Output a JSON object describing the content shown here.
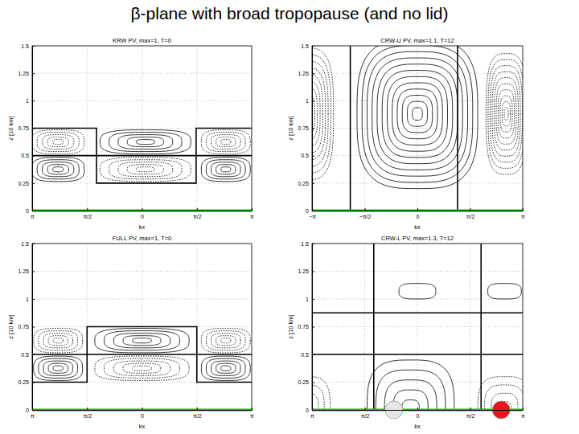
{
  "title": "β-plane with broad tropopause (and no lid)",
  "chart_data": [
    {
      "type": "contour",
      "title": "KRW PV, max=1, T=0",
      "x_label": "kx",
      "y_label": "z [10 km]",
      "xlim": [
        -3.1416,
        3.1416
      ],
      "ylim": [
        0,
        1.5
      ],
      "xticks": [
        {
          "value": -3.1416,
          "label": "π"
        },
        {
          "value": -1.5708,
          "label": "π/2"
        },
        0,
        {
          "value": 1.5708,
          "label": "π/2"
        },
        {
          "value": 3.1416,
          "label": "π"
        }
      ],
      "yticks": [
        0,
        0.25,
        0.5,
        0.75,
        1,
        1.25,
        1.5
      ],
      "grid": true,
      "surface": {
        "z": 0,
        "color": "#00c800"
      },
      "boundary": [
        {
          "x": [
            -3.1416,
            -1.3,
            -1.3,
            1.55,
            1.55,
            3.1416
          ],
          "z": [
            0.75,
            0.75,
            0.25,
            0.25,
            0.75,
            0.75
          ]
        },
        {
          "x": [
            -3.1416,
            3.1416
          ],
          "z": [
            0.5,
            0.5
          ]
        }
      ],
      "cells": [
        {
          "x": -2.4,
          "z": 0.625,
          "half_width": 0.75,
          "half_height": 0.11,
          "levels": 5,
          "line_style": "dashed"
        },
        {
          "x": 0.1,
          "z": 0.625,
          "half_width": 1.3,
          "half_height": 0.11,
          "levels": 5,
          "line_style": "solid"
        },
        {
          "x": 2.4,
          "z": 0.625,
          "half_width": 0.7,
          "half_height": 0.11,
          "levels": 5,
          "line_style": "dashed"
        },
        {
          "x": -2.4,
          "z": 0.375,
          "half_width": 0.75,
          "half_height": 0.11,
          "levels": 5,
          "line_style": "solid"
        },
        {
          "x": 0.1,
          "z": 0.375,
          "half_width": 1.3,
          "half_height": 0.11,
          "levels": 5,
          "line_style": "dashed"
        },
        {
          "x": 2.4,
          "z": 0.375,
          "half_width": 0.7,
          "half_height": 0.11,
          "levels": 5,
          "line_style": "solid"
        }
      ],
      "markers": []
    },
    {
      "type": "contour",
      "title": "CRW-U PV, max=1.1, T=12",
      "x_label": "kx",
      "y_label": "z [10 km]",
      "xlim": [
        -3.1416,
        3.1416
      ],
      "ylim": [
        0,
        1.5
      ],
      "xticks": [
        {
          "value": -3.1416,
          "label": "−π"
        },
        {
          "value": -1.5708,
          "label": "−π/2"
        },
        0,
        {
          "value": 1.5708,
          "label": "π/2"
        },
        {
          "value": 3.1416,
          "label": "π"
        }
      ],
      "yticks": [
        0,
        0.25,
        0.5,
        0.75,
        1,
        1.25,
        1.5
      ],
      "grid": true,
      "surface": {
        "z": 0,
        "color": "#00c800"
      },
      "boundary": [
        {
          "x": [
            -2.0,
            -2.0
          ],
          "z": [
            0,
            1.5
          ]
        },
        {
          "x": [
            1.2,
            1.2
          ],
          "z": [
            0,
            1.5
          ]
        }
      ],
      "cells": [
        {
          "x": 0,
          "z": 0.88,
          "half_width": 1.8,
          "half_height": 0.68,
          "levels": 12,
          "line_style": "solid"
        },
        {
          "x": -3.3,
          "z": 0.88,
          "half_width": 0.8,
          "half_height": 0.6,
          "levels": 10,
          "line_style": "dashed"
        },
        {
          "x": 2.65,
          "z": 0.88,
          "half_width": 0.6,
          "half_height": 0.55,
          "levels": 10,
          "line_style": "dashed"
        }
      ],
      "markers": []
    },
    {
      "type": "contour",
      "title": "FULL PV, max=1, T=0",
      "x_label": "kx",
      "y_label": "z [10 km]",
      "xlim": [
        -3.1416,
        3.1416
      ],
      "ylim": [
        0,
        1.5
      ],
      "xticks": [
        {
          "value": -3.1416,
          "label": "π"
        },
        {
          "value": -1.5708,
          "label": "π/2"
        },
        0,
        {
          "value": 1.5708,
          "label": "π/2"
        },
        {
          "value": 3.1416,
          "label": "π"
        }
      ],
      "yticks": [
        0,
        0.25,
        0.5,
        0.75,
        1,
        1.25,
        1.5
      ],
      "grid": true,
      "surface": {
        "z": 0,
        "color": "#00c800"
      },
      "boundary": [
        {
          "x": [
            -3.1416,
            -1.5708,
            -1.5708,
            1.5708,
            1.5708,
            3.1416
          ],
          "z": [
            0.25,
            0.25,
            0.75,
            0.75,
            0.25,
            0.25
          ]
        },
        {
          "x": [
            -3.1416,
            3.1416
          ],
          "z": [
            0.5,
            0.5
          ]
        }
      ],
      "cells": [
        {
          "x": -2.4,
          "z": 0.625,
          "half_width": 0.7,
          "half_height": 0.11,
          "levels": 5,
          "line_style": "dashed"
        },
        {
          "x": 0,
          "z": 0.625,
          "half_width": 1.35,
          "half_height": 0.11,
          "levels": 5,
          "line_style": "solid"
        },
        {
          "x": 2.4,
          "z": 0.625,
          "half_width": 0.7,
          "half_height": 0.11,
          "levels": 5,
          "line_style": "dashed"
        },
        {
          "x": -2.4,
          "z": 0.375,
          "half_width": 0.7,
          "half_height": 0.11,
          "levels": 5,
          "line_style": "solid"
        },
        {
          "x": 0,
          "z": 0.375,
          "half_width": 1.35,
          "half_height": 0.11,
          "levels": 5,
          "line_style": "dashed"
        },
        {
          "x": 2.4,
          "z": 0.375,
          "half_width": 0.7,
          "half_height": 0.11,
          "levels": 5,
          "line_style": "solid"
        }
      ],
      "markers": []
    },
    {
      "type": "contour",
      "title": "CRW-L PV, max=1.3, T=12",
      "x_label": "kx",
      "y_label": "z [10 km]",
      "xlim": [
        -3.1416,
        3.1416
      ],
      "ylim": [
        0,
        1.5
      ],
      "xticks": [
        {
          "value": -3.1416,
          "label": "π"
        },
        {
          "value": -1.5708,
          "label": "π/2"
        },
        0,
        {
          "value": 1.5708,
          "label": "π/2"
        },
        {
          "value": 3.1416,
          "label": "π"
        }
      ],
      "yticks": [
        0,
        0.25,
        0.5,
        0.75,
        1,
        1.25,
        1.5
      ],
      "grid": true,
      "surface": {
        "z": 0,
        "color": "#00c800"
      },
      "boundary": [
        {
          "x": [
            -1.3,
            -1.3
          ],
          "z": [
            0,
            1.5
          ]
        },
        {
          "x": [
            1.9,
            1.9
          ],
          "z": [
            0,
            1.5
          ]
        },
        {
          "x": [
            -3.1416,
            3.1416
          ],
          "z": [
            0.875,
            0.875
          ]
        },
        {
          "x": [
            -3.1416,
            3.1416
          ],
          "z": [
            0.5,
            0.5
          ]
        }
      ],
      "cells": [
        {
          "x": 0,
          "z": 1.07,
          "half_width": 0.55,
          "half_height": 0.07,
          "levels": 1,
          "line_style": "solid"
        },
        {
          "x": 2.6,
          "z": 1.07,
          "half_width": 0.5,
          "half_height": 0.07,
          "levels": 1,
          "line_style": "solid"
        },
        {
          "x": -0.2,
          "z": 0,
          "half_width": 1.3,
          "half_height": 0.45,
          "levels": 5,
          "line_style": "solid"
        },
        {
          "x": -3.3,
          "z": 0,
          "half_width": 0.7,
          "half_height": 0.3,
          "levels": 4,
          "line_style": "dashed"
        },
        {
          "x": 2.6,
          "z": 0,
          "half_width": 0.8,
          "half_height": 0.3,
          "levels": 4,
          "line_style": "dashed"
        }
      ],
      "markers": [
        {
          "x": -0.7,
          "z": 0,
          "color": "#e6e6e6"
        },
        {
          "x": 2.5,
          "z": 0,
          "color": "#e8161b"
        }
      ]
    }
  ]
}
